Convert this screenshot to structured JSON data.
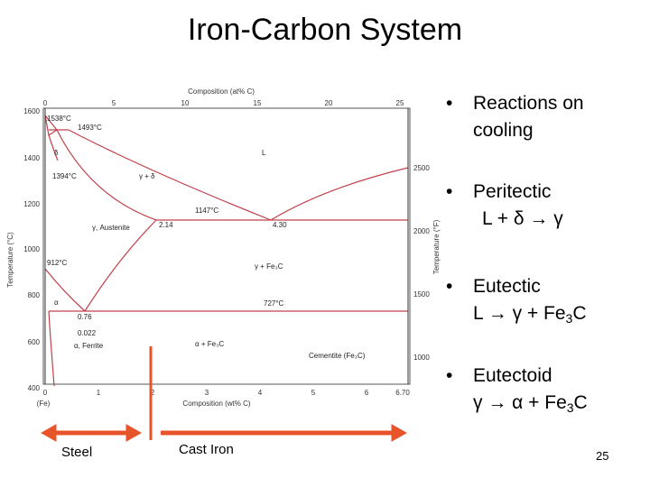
{
  "slide": {
    "title": "Iron-Carbon System",
    "page_number": "25"
  },
  "diagram": {
    "top_axis_label": "Composition (at% C)",
    "top_ticks": [
      "0",
      "5",
      "10",
      "15",
      "20",
      "25"
    ],
    "bottom_axis_label": "Composition (wt% C)",
    "bottom_ticks": [
      "0",
      "1",
      "2",
      "3",
      "4",
      "5",
      "6",
      "6.70"
    ],
    "bottom_left_label": "(Fe)",
    "left_axis_label": "Temperature (°C)",
    "left_ticks": [
      "1600",
      "1400",
      "1200",
      "1000",
      "800",
      "600",
      "400"
    ],
    "right_axis_label": "Temperature (°F)",
    "right_ticks": [
      "2500",
      "2000",
      "1500",
      "1000"
    ],
    "annotations": {
      "t1538": "1538°C",
      "t1493": "1493°C",
      "delta": "δ",
      "t1394": "1394°C",
      "gamma_delta": "γ + δ",
      "L": "L",
      "gamma": "γ",
      "t1147": "1147°C",
      "c214": "2.14",
      "c430": "4.30",
      "austenite": "γ, Austenite",
      "t912": "912°C",
      "gamma_fe3c": "γ + Fe₃C",
      "t727": "727°C",
      "alpha": "α",
      "c076": "0.76",
      "c0022": "0.022",
      "ferrite": "α, Ferrite",
      "alpha_fe3c": "α + Fe₃C",
      "cementite": "Cementite (Fe₃C)"
    }
  },
  "bullets": [
    {
      "text": "Reactions on",
      "text2": "cooling"
    },
    {
      "text": "Peritectic"
    },
    {
      "text": "Eutectic"
    },
    {
      "text": "Eutectoid"
    }
  ],
  "reactions": {
    "peritectic": "L + δ → γ",
    "eutectic_left": "L → γ + Fe",
    "eutectic_sub": "3",
    "eutectic_right": "C",
    "eutectoid_left": "γ → α + Fe",
    "eutectoid_sub": "3",
    "eutectoid_right": "C"
  },
  "arrows": {
    "steel_label": "Steel",
    "cast_iron_label": "Cast Iron",
    "steel_color": "#e8542a",
    "divider_color": "#e8542a"
  },
  "colors": {
    "phase_line": "#c0404a",
    "axis": "#333333",
    "text": "#000000"
  }
}
